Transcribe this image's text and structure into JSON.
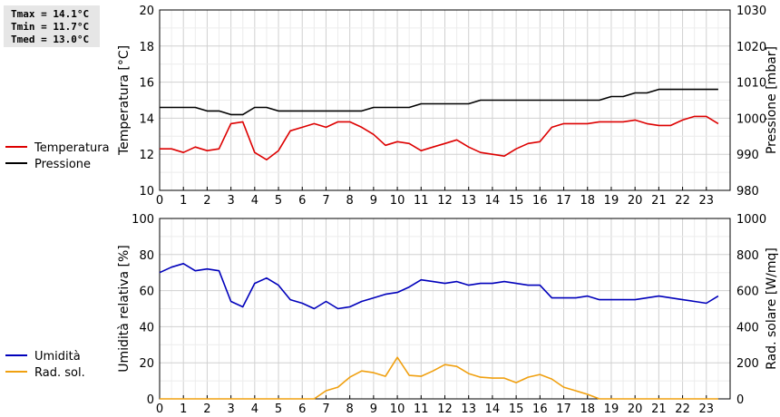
{
  "stats": {
    "tmax": "Tmax = 14.1°C",
    "tmin": "Tmin = 11.7°C",
    "tmed": "Tmed = 13.0°C"
  },
  "chart_data": [
    {
      "type": "line",
      "ylabel": "Temperatura [°C]",
      "y2label": "Pressione [mbar]",
      "x_ticks": [
        "0",
        "1",
        "2",
        "3",
        "4",
        "5",
        "6",
        "7",
        "8",
        "9",
        "10",
        "11",
        "12",
        "13",
        "14",
        "15",
        "16",
        "17",
        "18",
        "19",
        "20",
        "21",
        "22",
        "23"
      ],
      "xlim": [
        0,
        24
      ],
      "ylim": [
        10,
        20
      ],
      "y_ticks": [
        "10",
        "12",
        "14",
        "16",
        "18",
        "20"
      ],
      "y2lim": [
        980,
        1030
      ],
      "y2_ticks": [
        "980",
        "990",
        "1000",
        "1010",
        "1020",
        "1030"
      ],
      "grid": true,
      "legend_position": "left",
      "series": [
        {
          "name": "Temperatura",
          "axis": "left",
          "color": "#dd0000",
          "x": [
            0,
            0.5,
            1,
            1.5,
            2,
            2.5,
            3,
            3.5,
            4,
            4.5,
            5,
            5.5,
            6,
            6.5,
            7,
            7.5,
            8,
            8.5,
            9,
            9.5,
            10,
            10.5,
            11,
            11.5,
            12,
            12.5,
            13,
            13.5,
            14,
            14.5,
            15,
            15.5,
            16,
            16.5,
            17,
            17.5,
            18,
            18.5,
            19,
            19.5,
            20,
            20.5,
            21,
            21.5,
            22,
            22.5,
            23,
            23.5
          ],
          "values": [
            12.3,
            12.3,
            12.1,
            12.4,
            12.2,
            12.3,
            13.7,
            13.8,
            12.1,
            11.7,
            12.2,
            13.3,
            13.5,
            13.7,
            13.5,
            13.8,
            13.8,
            13.5,
            13.1,
            12.5,
            12.7,
            12.6,
            12.2,
            12.4,
            12.6,
            12.8,
            12.4,
            12.1,
            12.0,
            11.9,
            12.3,
            12.6,
            12.7,
            13.5,
            13.7,
            13.7,
            13.7,
            13.8,
            13.8,
            13.8,
            13.9,
            13.7,
            13.6,
            13.6,
            13.9,
            14.1,
            14.1,
            13.7
          ]
        },
        {
          "name": "Pressione",
          "axis": "right",
          "color": "#000000",
          "x": [
            0,
            0.5,
            1,
            1.5,
            2,
            2.5,
            3,
            3.5,
            4,
            4.5,
            5,
            5.5,
            6,
            6.5,
            7,
            7.5,
            8,
            8.5,
            9,
            9.5,
            10,
            10.5,
            11,
            11.5,
            12,
            12.5,
            13,
            13.5,
            14,
            14.5,
            15,
            15.5,
            16,
            16.5,
            17,
            17.5,
            18,
            18.5,
            19,
            19.5,
            20,
            20.5,
            21,
            21.5,
            22,
            22.5,
            23,
            23.5
          ],
          "values": [
            1003,
            1003,
            1003,
            1003,
            1002,
            1002,
            1001,
            1001,
            1003,
            1003,
            1002,
            1002,
            1002,
            1002,
            1002,
            1002,
            1002,
            1002,
            1003,
            1003,
            1003,
            1003,
            1004,
            1004,
            1004,
            1004,
            1004,
            1005,
            1005,
            1005,
            1005,
            1005,
            1005,
            1005,
            1005,
            1005,
            1005,
            1005,
            1006,
            1006,
            1007,
            1007,
            1008,
            1008,
            1008,
            1008,
            1008,
            1008
          ]
        }
      ]
    },
    {
      "type": "line",
      "ylabel": "Umidità relativa [%]",
      "y2label": "Rad. solare [W/mq]",
      "x_ticks": [
        "0",
        "1",
        "2",
        "3",
        "4",
        "5",
        "6",
        "7",
        "8",
        "9",
        "10",
        "11",
        "12",
        "13",
        "14",
        "15",
        "16",
        "17",
        "18",
        "19",
        "20",
        "21",
        "22",
        "23"
      ],
      "xlim": [
        0,
        24
      ],
      "ylim": [
        0,
        100
      ],
      "y_ticks": [
        "0",
        "20",
        "40",
        "60",
        "80",
        "100"
      ],
      "y2lim": [
        0,
        1000
      ],
      "y2_ticks": [
        "0",
        "200",
        "400",
        "600",
        "800",
        "1000"
      ],
      "grid": true,
      "legend_position": "left",
      "series": [
        {
          "name": "Umidità",
          "axis": "left",
          "color": "#0000bb",
          "x": [
            0,
            0.5,
            1,
            1.5,
            2,
            2.5,
            3,
            3.5,
            4,
            4.5,
            5,
            5.5,
            6,
            6.5,
            7,
            7.5,
            8,
            8.5,
            9,
            9.5,
            10,
            10.5,
            11,
            11.5,
            12,
            12.5,
            13,
            13.5,
            14,
            14.5,
            15,
            15.5,
            16,
            16.5,
            17,
            17.5,
            18,
            18.5,
            19,
            19.5,
            20,
            20.5,
            21,
            21.5,
            22,
            22.5,
            23,
            23.5
          ],
          "values": [
            70,
            73,
            75,
            71,
            72,
            71,
            54,
            51,
            64,
            67,
            63,
            55,
            53,
            50,
            54,
            50,
            51,
            54,
            56,
            58,
            59,
            62,
            66,
            65,
            64,
            65,
            63,
            64,
            64,
            65,
            64,
            63,
            63,
            56,
            56,
            56,
            57,
            55,
            55,
            55,
            55,
            56,
            57,
            56,
            55,
            54,
            53,
            57
          ]
        },
        {
          "name": "Rad. sol.",
          "axis": "right",
          "color": "#f0a010",
          "x": [
            0,
            0.5,
            1,
            1.5,
            2,
            2.5,
            3,
            3.5,
            4,
            4.5,
            5,
            5.5,
            6,
            6.5,
            7,
            7.5,
            8,
            8.5,
            9,
            9.5,
            10,
            10.5,
            11,
            11.5,
            12,
            12.5,
            13,
            13.5,
            14,
            14.5,
            15,
            15.5,
            16,
            16.5,
            17,
            17.5,
            18,
            18.5,
            19,
            19.5,
            20,
            20.5,
            21,
            21.5,
            22,
            22.5,
            23,
            23.5
          ],
          "values": [
            0,
            0,
            0,
            0,
            0,
            0,
            0,
            0,
            0,
            0,
            0,
            0,
            0,
            0,
            45,
            65,
            120,
            155,
            145,
            125,
            230,
            130,
            125,
            155,
            190,
            180,
            140,
            120,
            115,
            115,
            90,
            120,
            135,
            110,
            65,
            45,
            25,
            0,
            0,
            0,
            0,
            0,
            0,
            0,
            0,
            0,
            0,
            0
          ]
        }
      ]
    }
  ]
}
